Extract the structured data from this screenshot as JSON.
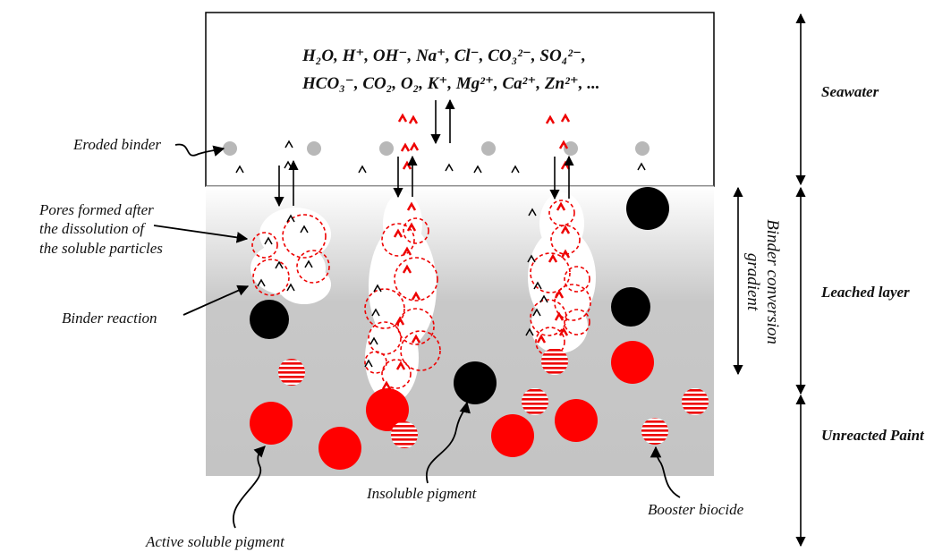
{
  "ions": [
    "H₂O, H⁺, OH⁻, Na⁺, Cl⁻, CO₃²⁻, SO₄²⁻,",
    "HCO₃⁻, CO₂, O₂, K⁺, Mg²⁺, Ca²⁺, Zn²⁺, ..."
  ],
  "labels": {
    "eroded_binder": "Eroded binder",
    "pores": [
      "Pores formed after",
      "the dissolution of",
      "the soluble particles"
    ],
    "binder_reaction": "Binder reaction",
    "insoluble_pigment": "Insoluble pigment",
    "booster_biocide": "Booster biocide",
    "active_soluble_pigment": "Active soluble pigment",
    "gradient": [
      "Binder conversion",
      "gradient"
    ]
  },
  "layers": [
    "Seawater",
    "Leached layer",
    "Unreacted Paint"
  ]
}
